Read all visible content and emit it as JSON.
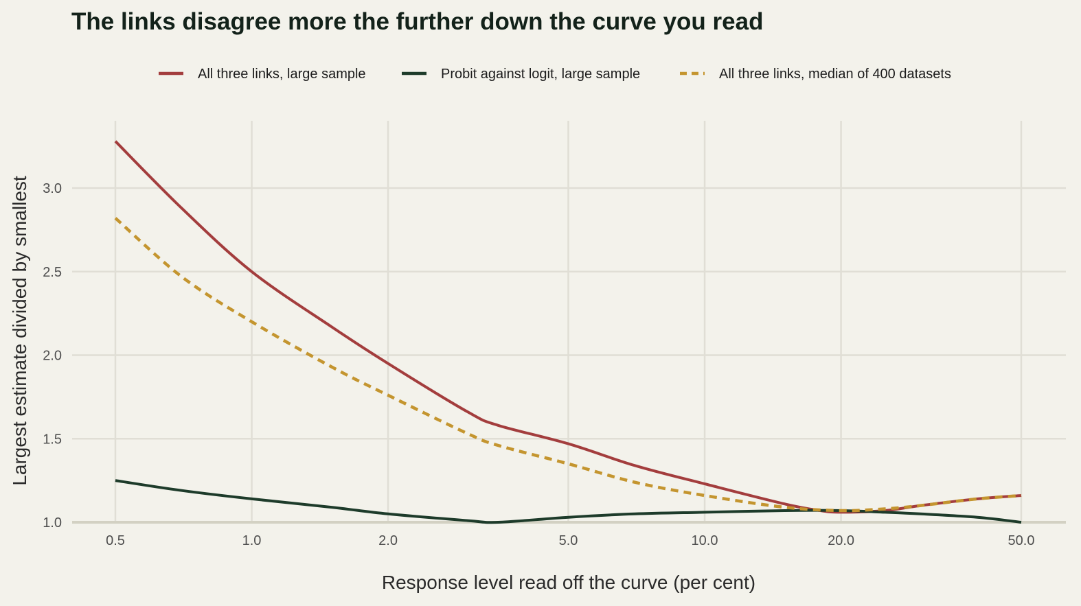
{
  "chart_data": {
    "type": "line",
    "title": "The links disagree more the further down the curve you read",
    "xlabel": "Response level read off the curve (per cent)",
    "ylabel": "Largest estimate divided by smallest",
    "x_scale": "log",
    "x_ticks": [
      0.5,
      1,
      2,
      5,
      10,
      20,
      50
    ],
    "x_tick_labels": [
      "0.5",
      "1.0",
      "2.0",
      "5.0",
      "10.0",
      "20.0",
      "50.0"
    ],
    "y_ticks": [
      1,
      1.5,
      2,
      2.5,
      3
    ],
    "y_tick_labels": [
      "1.0",
      "1.5",
      "2.0",
      "2.5",
      "3.0"
    ],
    "xlim": [
      0.5,
      50
    ],
    "ylim": [
      1,
      3.3
    ],
    "reference_line_y": 1,
    "grid": true,
    "legend_position": "top",
    "series": [
      {
        "name": "All three links, large sample",
        "color": "#a33d3d",
        "style": "solid",
        "x": [
          0.5,
          0.7,
          1,
          1.5,
          2,
          3,
          3.5,
          5,
          7,
          10,
          15,
          18,
          20,
          25,
          30,
          40,
          50
        ],
        "y": [
          3.28,
          2.88,
          2.5,
          2.17,
          1.95,
          1.66,
          1.58,
          1.47,
          1.34,
          1.23,
          1.11,
          1.07,
          1.06,
          1.07,
          1.1,
          1.14,
          1.16
        ]
      },
      {
        "name": "Probit against logit, large sample",
        "color": "#1d3b2a",
        "style": "solid",
        "x": [
          0.5,
          0.7,
          1,
          1.5,
          2,
          3,
          3.5,
          5,
          7,
          10,
          15,
          20,
          25,
          30,
          40,
          50
        ],
        "y": [
          1.25,
          1.19,
          1.14,
          1.09,
          1.05,
          1.01,
          1.0,
          1.03,
          1.05,
          1.06,
          1.07,
          1.07,
          1.06,
          1.05,
          1.03,
          1.0
        ]
      },
      {
        "name": "All three links, median of 400 datasets",
        "color": "#c4952f",
        "style": "dashed",
        "x": [
          0.5,
          0.7,
          1,
          1.5,
          2,
          3,
          3.5,
          5,
          7,
          10,
          15,
          20,
          25,
          30,
          40,
          50
        ],
        "y": [
          2.82,
          2.47,
          2.2,
          1.93,
          1.76,
          1.53,
          1.46,
          1.35,
          1.24,
          1.16,
          1.09,
          1.07,
          1.08,
          1.1,
          1.14,
          1.16
        ]
      }
    ]
  }
}
